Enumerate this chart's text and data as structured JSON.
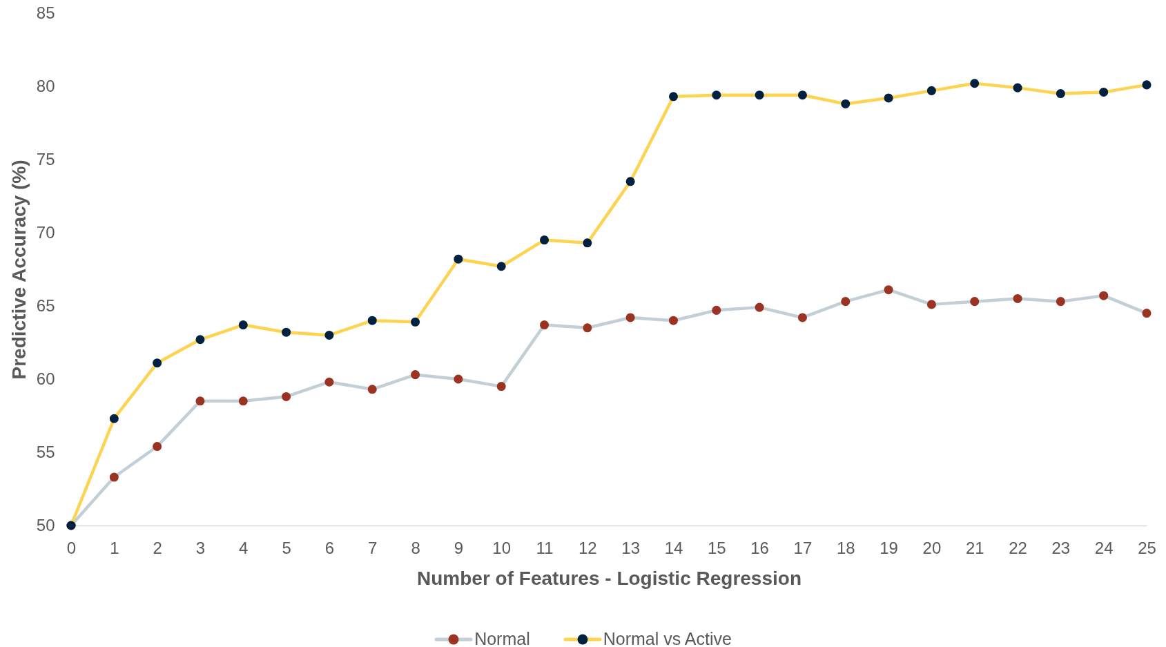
{
  "chart_data": {
    "type": "line",
    "xlabel": "Number of Features - Logistic Regression",
    "ylabel": "Predictive Accuracy (%)",
    "x": [
      0,
      1,
      2,
      3,
      4,
      5,
      6,
      7,
      8,
      9,
      10,
      11,
      12,
      13,
      14,
      15,
      16,
      17,
      18,
      19,
      20,
      21,
      22,
      23,
      24,
      25
    ],
    "series": [
      {
        "name": "Normal",
        "color": "#c2cfd6",
        "colors": [
          "#9b3323",
          "#9b3323",
          "#9b3323",
          "#9b3323",
          "#9b3323",
          "#9b3323",
          "#9b3323",
          "#9b3323",
          "#9b3323",
          "#9b3323",
          "#9b3323",
          "#9b3323",
          "#9b3323",
          "#9b3323",
          "#9b3323",
          "#9b3323",
          "#9b3323",
          "#9b3323",
          "#9b3323",
          "#9b3323",
          "#9b3323",
          "#9b3323",
          "#9b3323",
          "#9b3323",
          "#9b3323",
          "#9b3323"
        ],
        "values": [
          50,
          53.3,
          55.4,
          58.5,
          58.5,
          58.8,
          59.8,
          59.3,
          60.3,
          60.0,
          59.5,
          63.7,
          63.5,
          64.2,
          64.0,
          64.7,
          64.9,
          64.2,
          65.3,
          66.1,
          65.1,
          65.3,
          65.5,
          65.3,
          65.7,
          64.5
        ]
      },
      {
        "name": "Normal vs Active",
        "color": "#fdd451",
        "colors": [
          "#02203f",
          "#02203f",
          "#02203f",
          "#02203f",
          "#02203f",
          "#02203f",
          "#02203f",
          "#02203f",
          "#02203f",
          "#02203f",
          "#02203f",
          "#02203f",
          "#02203f",
          "#02203f",
          "#02203f",
          "#02203f",
          "#02203f",
          "#02203f",
          "#02203f",
          "#02203f",
          "#02203f",
          "#02203f",
          "#02203f",
          "#02203f",
          "#02203f",
          "#02203f"
        ],
        "values": [
          50,
          57.3,
          61.1,
          62.7,
          63.7,
          63.2,
          63.0,
          64.0,
          63.9,
          68.2,
          67.7,
          69.5,
          69.3,
          73.5,
          79.3,
          79.4,
          79.4,
          79.4,
          78.8,
          79.2,
          79.7,
          80.2,
          79.9,
          79.5,
          79.6,
          80.1
        ]
      }
    ],
    "xlim": [
      0,
      25
    ],
    "xticks": [
      0,
      1,
      2,
      3,
      4,
      5,
      6,
      7,
      8,
      9,
      10,
      11,
      12,
      13,
      14,
      15,
      16,
      17,
      18,
      19,
      20,
      21,
      22,
      23,
      24,
      25
    ],
    "ylim": [
      50,
      85
    ],
    "yticks": [
      50,
      55,
      60,
      65,
      70,
      75,
      80,
      85
    ],
    "marker": "circle",
    "legend": "bottom"
  }
}
